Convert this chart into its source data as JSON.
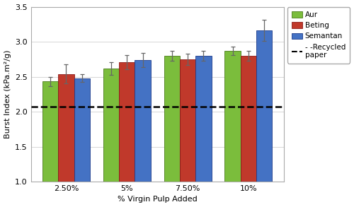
{
  "categories": [
    "2.50%",
    "5%",
    "7.50%",
    "10%"
  ],
  "aur_values": [
    2.43,
    2.62,
    2.8,
    2.87
  ],
  "beting_values": [
    2.54,
    2.71,
    2.75,
    2.8
  ],
  "semantan_values": [
    2.48,
    2.74,
    2.8,
    3.16
  ],
  "aur_errors": [
    0.07,
    0.09,
    0.07,
    0.06
  ],
  "beting_errors": [
    0.14,
    0.1,
    0.08,
    0.07
  ],
  "semantan_errors": [
    0.06,
    0.1,
    0.07,
    0.15
  ],
  "recycled_line": 2.07,
  "bar_color_aur": "#7BBD3C",
  "bar_color_beting": "#C0392B",
  "bar_color_semantan": "#4472C4",
  "ylabel": "Burst Index (kPa.m²/g)",
  "xlabel": "% Virgin Pulp Added",
  "ylim": [
    1.0,
    3.5
  ],
  "yticks": [
    1.0,
    1.5,
    2.0,
    2.5,
    3.0,
    3.5
  ],
  "legend_labels": [
    "Aur",
    "Beting",
    "Semantan",
    "- -Recycled\npaper"
  ],
  "bar_width": 0.26,
  "background_color": "#FFFFFF",
  "grid_color": "#D0D0D0",
  "spine_color": "#AAAAAA"
}
